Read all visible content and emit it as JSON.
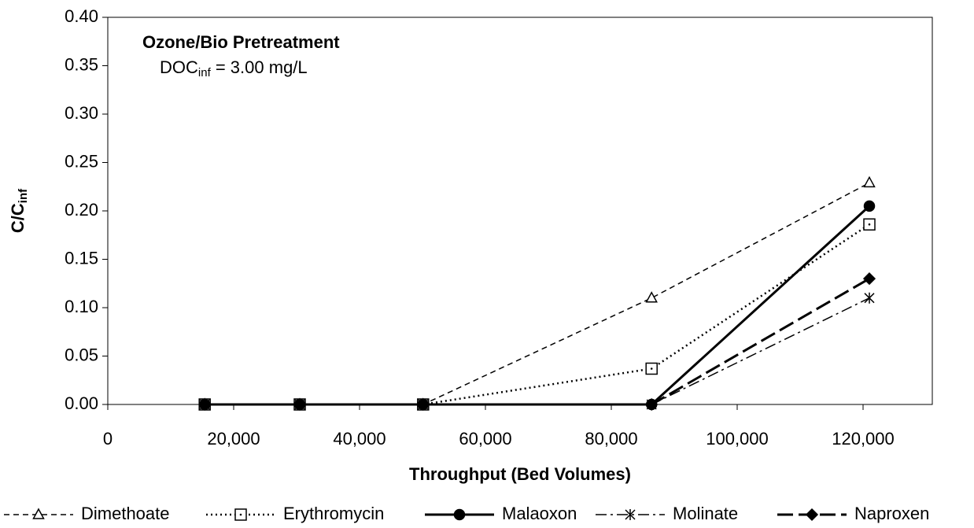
{
  "chart_data": {
    "type": "line",
    "annotation_title": "Ozone/Bio Pretreatment",
    "annotation": {
      "main": "DOC",
      "sub": "inf",
      "rest": " = 3.00 mg/L"
    },
    "x_label": "Throughput (Bed Volumes)",
    "y_label": {
      "main": "C/C",
      "sub": "inf"
    },
    "x": [
      15400,
      30500,
      50100,
      86400,
      121000
    ],
    "xlim": [
      0,
      131000
    ],
    "xticks": [
      0,
      {
        "value": 20000,
        "label": "20,000"
      },
      {
        "value": 40000,
        "label": "40,000"
      },
      {
        "value": 60000,
        "label": "60,000"
      },
      {
        "value": 80000,
        "label": "80,000"
      },
      {
        "value": 100000,
        "label": "100,000"
      },
      {
        "value": 120000,
        "label": "120,000"
      }
    ],
    "ylim": [
      0,
      0.4
    ],
    "yticks": [
      {
        "value": 0,
        "label": "0.00"
      },
      {
        "value": 0.05,
        "label": "0.05"
      },
      {
        "value": 0.1,
        "label": "0.10"
      },
      {
        "value": 0.15,
        "label": "0.15"
      },
      {
        "value": 0.2,
        "label": "0.20"
      },
      {
        "value": 0.25,
        "label": "0.25"
      },
      {
        "value": 0.3,
        "label": "0.30"
      },
      {
        "value": 0.35,
        "label": "0.35"
      },
      {
        "value": 0.4,
        "label": "0.40"
      }
    ],
    "grid": false,
    "legend": "bottom",
    "series": [
      {
        "name": "Dimethoate",
        "color": "#000000",
        "dash": "7,5",
        "width": 1.5,
        "marker": "triangle",
        "values": [
          0,
          0,
          0,
          0.11,
          0.229
        ]
      },
      {
        "name": "Erythromycin",
        "color": "#000000",
        "dash": "2,4",
        "width": 2.5,
        "marker": "square",
        "values": [
          0,
          0,
          0,
          0.037,
          0.186
        ]
      },
      {
        "name": "Malaoxon",
        "color": "#000000",
        "dash": "none",
        "width": 3,
        "marker": "circle",
        "values": [
          0,
          0,
          0,
          0,
          0.205
        ]
      },
      {
        "name": "Molinate",
        "color": "#000000",
        "dash": "14,5,3,5",
        "width": 1.5,
        "marker": "star",
        "values": [
          0,
          0,
          0,
          0,
          0.11
        ]
      },
      {
        "name": "Naproxen",
        "color": "#000000",
        "dash": "20,7",
        "width": 3,
        "marker": "diamond",
        "values": [
          0,
          0,
          0,
          0,
          0.13
        ]
      }
    ]
  }
}
